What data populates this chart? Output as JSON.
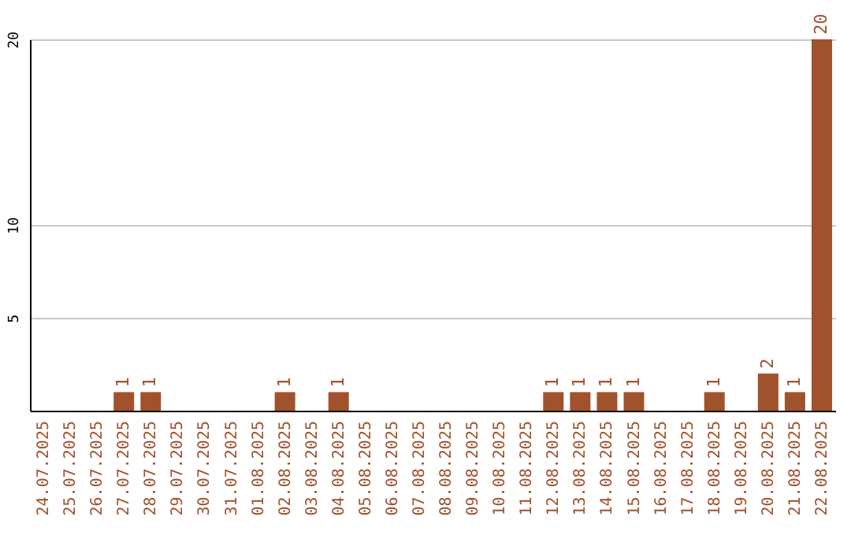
{
  "chart_data": {
    "type": "bar",
    "categories": [
      "24.07.2025",
      "25.07.2025",
      "26.07.2025",
      "27.07.2025",
      "28.07.2025",
      "29.07.2025",
      "30.07.2025",
      "31.07.2025",
      "01.08.2025",
      "02.08.2025",
      "03.08.2025",
      "04.08.2025",
      "05.08.2025",
      "06.08.2025",
      "07.08.2025",
      "08.08.2025",
      "09.08.2025",
      "10.08.2025",
      "11.08.2025",
      "12.08.2025",
      "13.08.2025",
      "14.08.2025",
      "15.08.2025",
      "16.08.2025",
      "17.08.2025",
      "18.08.2025",
      "19.08.2025",
      "20.08.2025",
      "21.08.2025",
      "22.08.2025"
    ],
    "values": [
      0,
      0,
      0,
      1,
      1,
      0,
      0,
      0,
      0,
      1,
      0,
      1,
      0,
      0,
      0,
      0,
      0,
      0,
      0,
      1,
      1,
      1,
      1,
      0,
      0,
      1,
      0,
      2,
      1,
      20
    ],
    "value_labels": [
      null,
      null,
      null,
      "1",
      "1",
      null,
      null,
      null,
      null,
      "1",
      null,
      "1",
      null,
      null,
      null,
      null,
      null,
      null,
      null,
      "1",
      "1",
      "1",
      "1",
      null,
      null,
      "1",
      null,
      "2",
      "1",
      "20"
    ],
    "color": "#a0522d",
    "ylim": [
      0,
      20
    ],
    "yticks": [
      5,
      10,
      20
    ],
    "grid": "y"
  }
}
